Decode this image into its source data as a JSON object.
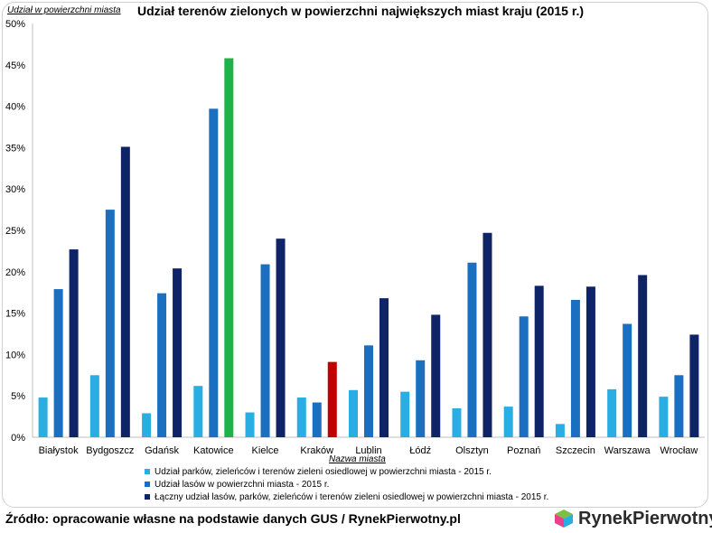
{
  "source": "Źródło: opracowanie własne na podstawie danych GUS / RynekPierwotny.pl",
  "logo_text": "RynekPierwotny",
  "chart_data": {
    "type": "bar",
    "title": "Udział terenów zielonych w powierzchni największych miast kraju (2015 r.)",
    "ylabel": "Udział w powierzchni miasta",
    "xlabel": "Nazwa miasta",
    "ylim": [
      0,
      50
    ],
    "yticks": [
      "0%",
      "5%",
      "10%",
      "15%",
      "20%",
      "25%",
      "30%",
      "35%",
      "40%",
      "45%",
      "50%"
    ],
    "grid": false,
    "legend_position": "bottom",
    "categories": [
      "Białystok",
      "Bydgoszcz",
      "Gdańsk",
      "Katowice",
      "Kielce",
      "Kraków",
      "Lublin",
      "Łódź",
      "Olsztyn",
      "Poznań",
      "Szczecin",
      "Warszawa",
      "Wrocław"
    ],
    "series": [
      {
        "name": "Udział parków, zieleńców i terenów zieleni osiedlowej w powierzchni miasta - 2015 r.",
        "color": "#29aee3",
        "values": [
          4.8,
          7.5,
          2.9,
          6.2,
          3.0,
          4.8,
          5.7,
          5.5,
          3.5,
          3.7,
          1.6,
          5.8,
          4.9
        ]
      },
      {
        "name": "Udział lasów w powierzchni miasta - 2015 r.",
        "color": "#1b6fc0",
        "values": [
          17.9,
          27.5,
          17.4,
          39.7,
          20.9,
          4.2,
          11.1,
          9.3,
          21.1,
          14.6,
          16.6,
          13.7,
          7.5
        ]
      },
      {
        "name": "Łączny udział lasów, parków, zieleńców i terenów zieleni osiedlowej w powierzchni miasta - 2015 r.",
        "color": "#0f2466",
        "values": [
          22.7,
          35.1,
          20.4,
          45.8,
          24.0,
          9.1,
          16.8,
          14.8,
          24.7,
          18.3,
          18.2,
          19.6,
          12.4
        ],
        "highlight_colors": {
          "3": "#1db34a",
          "5": "#c00000"
        }
      }
    ]
  }
}
